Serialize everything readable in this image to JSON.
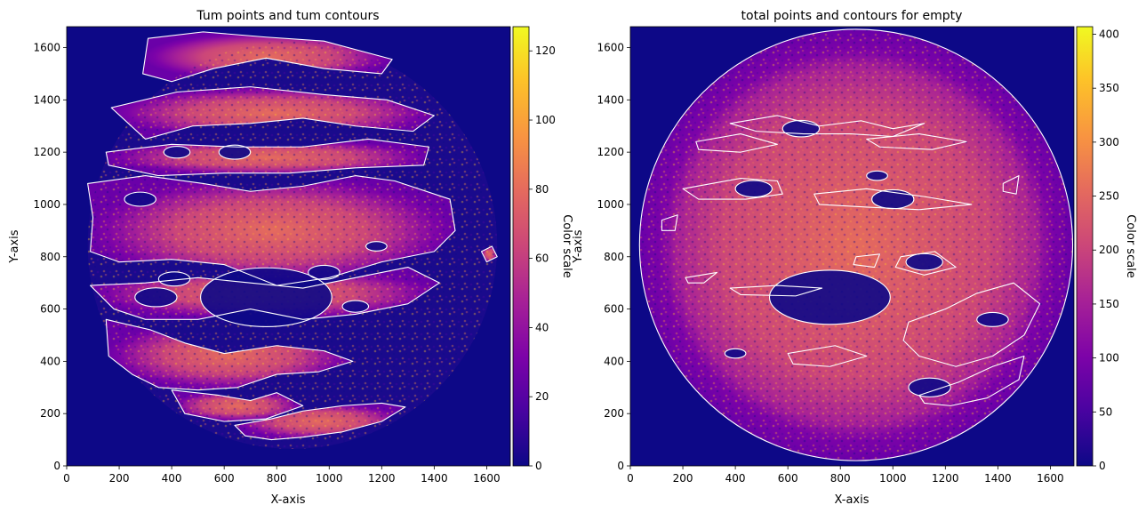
{
  "chart_data": [
    {
      "type": "heatmap",
      "title": "Tum points and tum contours",
      "xlabel": "X-axis",
      "ylabel": "Y-axis",
      "xlim": [
        0,
        1690
      ],
      "ylim": [
        0,
        1680
      ],
      "xticks": [
        0,
        200,
        400,
        600,
        800,
        1000,
        1200,
        1400,
        1600
      ],
      "yticks": [
        0,
        200,
        400,
        600,
        800,
        1000,
        1200,
        1400,
        1600
      ],
      "colormap": "plasma",
      "contour_color": "#ffffff",
      "colorbar": {
        "label": "Color scale",
        "range": [
          0,
          127
        ],
        "ticks": [
          0,
          20,
          40,
          60,
          80,
          100,
          120
        ]
      },
      "circle": {
        "center": [
          860,
          845
        ],
        "radius": 780
      },
      "contours": [
        [
          [
            310,
            1635
          ],
          [
            520,
            1660
          ],
          [
            760,
            1640
          ],
          [
            980,
            1625
          ],
          [
            1240,
            1555
          ],
          [
            1200,
            1500
          ],
          [
            980,
            1520
          ],
          [
            760,
            1560
          ],
          [
            560,
            1520
          ],
          [
            400,
            1470
          ],
          [
            290,
            1500
          ]
        ],
        [
          [
            170,
            1370
          ],
          [
            420,
            1430
          ],
          [
            700,
            1450
          ],
          [
            980,
            1420
          ],
          [
            1220,
            1400
          ],
          [
            1400,
            1340
          ],
          [
            1320,
            1280
          ],
          [
            1100,
            1300
          ],
          [
            900,
            1330
          ],
          [
            700,
            1310
          ],
          [
            480,
            1300
          ],
          [
            300,
            1250
          ]
        ],
        [
          [
            150,
            1200
          ],
          [
            400,
            1230
          ],
          [
            650,
            1220
          ],
          [
            900,
            1220
          ],
          [
            1150,
            1250
          ],
          [
            1380,
            1220
          ],
          [
            1360,
            1150
          ],
          [
            1100,
            1140
          ],
          [
            850,
            1120
          ],
          [
            600,
            1120
          ],
          [
            350,
            1110
          ],
          [
            160,
            1150
          ]
        ],
        [
          [
            80,
            1080
          ],
          [
            300,
            1110
          ],
          [
            520,
            1080
          ],
          [
            700,
            1050
          ],
          [
            900,
            1070
          ],
          [
            1100,
            1110
          ],
          [
            1250,
            1090
          ],
          [
            1460,
            1020
          ],
          [
            1480,
            900
          ],
          [
            1400,
            820
          ],
          [
            1200,
            780
          ],
          [
            1000,
            720
          ],
          [
            800,
            690
          ],
          [
            600,
            770
          ],
          [
            400,
            790
          ],
          [
            200,
            780
          ],
          [
            90,
            820
          ],
          [
            100,
            950
          ]
        ],
        [
          [
            90,
            690
          ],
          [
            300,
            700
          ],
          [
            500,
            720
          ],
          [
            700,
            700
          ],
          [
            900,
            680
          ],
          [
            1100,
            720
          ],
          [
            1300,
            760
          ],
          [
            1420,
            700
          ],
          [
            1300,
            620
          ],
          [
            1100,
            580
          ],
          [
            900,
            560
          ],
          [
            700,
            600
          ],
          [
            500,
            560
          ],
          [
            300,
            560
          ],
          [
            180,
            600
          ]
        ],
        [
          [
            150,
            560
          ],
          [
            320,
            520
          ],
          [
            450,
            470
          ],
          [
            600,
            430
          ],
          [
            800,
            460
          ],
          [
            980,
            440
          ],
          [
            1090,
            400
          ],
          [
            960,
            360
          ],
          [
            800,
            350
          ],
          [
            650,
            300
          ],
          [
            500,
            290
          ],
          [
            350,
            300
          ],
          [
            250,
            350
          ],
          [
            160,
            420
          ]
        ],
        [
          [
            400,
            290
          ],
          [
            580,
            270
          ],
          [
            700,
            250
          ],
          [
            800,
            280
          ],
          [
            900,
            230
          ],
          [
            760,
            180
          ],
          [
            600,
            170
          ],
          [
            450,
            200
          ]
        ],
        [
          [
            640,
            155
          ],
          [
            780,
            180
          ],
          [
            900,
            210
          ],
          [
            1050,
            230
          ],
          [
            1200,
            240
          ],
          [
            1290,
            225
          ],
          [
            1200,
            170
          ],
          [
            1050,
            130
          ],
          [
            900,
            110
          ],
          [
            780,
            100
          ],
          [
            680,
            115
          ]
        ],
        [
          [
            1580,
            820
          ],
          [
            1620,
            840
          ],
          [
            1640,
            800
          ],
          [
            1600,
            780
          ]
        ]
      ],
      "dark_spots": [
        [
          280,
          1020,
          60
        ],
        [
          760,
          645,
          250
        ],
        [
          340,
          645,
          80
        ],
        [
          410,
          715,
          60
        ],
        [
          980,
          740,
          60
        ],
        [
          420,
          1200,
          50
        ],
        [
          640,
          1200,
          60
        ],
        [
          1180,
          840,
          40
        ],
        [
          1100,
          610,
          50
        ]
      ]
    },
    {
      "type": "heatmap",
      "title": "total points and contours for empty",
      "xlabel": "X-axis",
      "ylabel": "Y-axis",
      "xlim": [
        0,
        1690
      ],
      "ylim": [
        0,
        1680
      ],
      "xticks": [
        0,
        200,
        400,
        600,
        800,
        1000,
        1200,
        1400,
        1600
      ],
      "yticks": [
        0,
        200,
        400,
        600,
        800,
        1000,
        1200,
        1400,
        1600
      ],
      "colormap": "plasma",
      "contour_color": "#ffffff",
      "colorbar": {
        "label": "Color scale",
        "range": [
          0,
          407
        ],
        "ticks": [
          0,
          50,
          100,
          150,
          200,
          250,
          300,
          350,
          400
        ]
      },
      "circle": {
        "center": [
          860,
          845
        ],
        "radius": 825
      },
      "contours": [
        [
          [
            380,
            1310
          ],
          [
            560,
            1340
          ],
          [
            720,
            1300
          ],
          [
            880,
            1320
          ],
          [
            1000,
            1290
          ],
          [
            1120,
            1310
          ],
          [
            1000,
            1260
          ],
          [
            840,
            1270
          ],
          [
            660,
            1270
          ],
          [
            480,
            1280
          ]
        ],
        [
          [
            250,
            1240
          ],
          [
            420,
            1270
          ],
          [
            560,
            1230
          ],
          [
            420,
            1200
          ],
          [
            260,
            1210
          ]
        ],
        [
          [
            900,
            1250
          ],
          [
            1100,
            1270
          ],
          [
            1280,
            1240
          ],
          [
            1150,
            1210
          ],
          [
            950,
            1220
          ]
        ],
        [
          [
            200,
            1060
          ],
          [
            420,
            1100
          ],
          [
            560,
            1090
          ],
          [
            580,
            1040
          ],
          [
            440,
            1020
          ],
          [
            260,
            1020
          ]
        ],
        [
          [
            700,
            1040
          ],
          [
            900,
            1060
          ],
          [
            1120,
            1030
          ],
          [
            1300,
            1000
          ],
          [
            1100,
            980
          ],
          [
            900,
            990
          ],
          [
            720,
            1000
          ]
        ],
        [
          [
            380,
            680
          ],
          [
            560,
            690
          ],
          [
            730,
            680
          ],
          [
            630,
            650
          ],
          [
            420,
            655
          ]
        ],
        [
          [
            1030,
            800
          ],
          [
            1160,
            820
          ],
          [
            1240,
            760
          ],
          [
            1120,
            730
          ],
          [
            1010,
            760
          ]
        ],
        [
          [
            860,
            800
          ],
          [
            950,
            810
          ],
          [
            930,
            760
          ],
          [
            850,
            770
          ]
        ],
        [
          [
            210,
            720
          ],
          [
            330,
            740
          ],
          [
            280,
            700
          ],
          [
            220,
            700
          ]
        ],
        [
          [
            1060,
            550
          ],
          [
            1200,
            600
          ],
          [
            1320,
            660
          ],
          [
            1460,
            700
          ],
          [
            1560,
            620
          ],
          [
            1500,
            500
          ],
          [
            1380,
            420
          ],
          [
            1240,
            380
          ],
          [
            1100,
            420
          ],
          [
            1040,
            480
          ]
        ],
        [
          [
            600,
            430
          ],
          [
            780,
            460
          ],
          [
            900,
            420
          ],
          [
            760,
            380
          ],
          [
            620,
            390
          ]
        ],
        [
          [
            1100,
            270
          ],
          [
            1250,
            320
          ],
          [
            1380,
            380
          ],
          [
            1500,
            420
          ],
          [
            1480,
            330
          ],
          [
            1360,
            260
          ],
          [
            1220,
            230
          ],
          [
            1120,
            240
          ]
        ],
        [
          [
            120,
            940
          ],
          [
            180,
            960
          ],
          [
            170,
            900
          ],
          [
            120,
            900
          ]
        ],
        [
          [
            1420,
            1080
          ],
          [
            1480,
            1110
          ],
          [
            1470,
            1040
          ],
          [
            1420,
            1050
          ]
        ]
      ],
      "dark_spots": [
        [
          760,
          645,
          230
        ],
        [
          470,
          1060,
          70
        ],
        [
          1000,
          1020,
          80
        ],
        [
          1120,
          780,
          70
        ],
        [
          1140,
          300,
          80
        ],
        [
          940,
          1110,
          40
        ],
        [
          650,
          1290,
          70
        ],
        [
          400,
          430,
          40
        ],
        [
          1380,
          560,
          60
        ]
      ]
    }
  ]
}
